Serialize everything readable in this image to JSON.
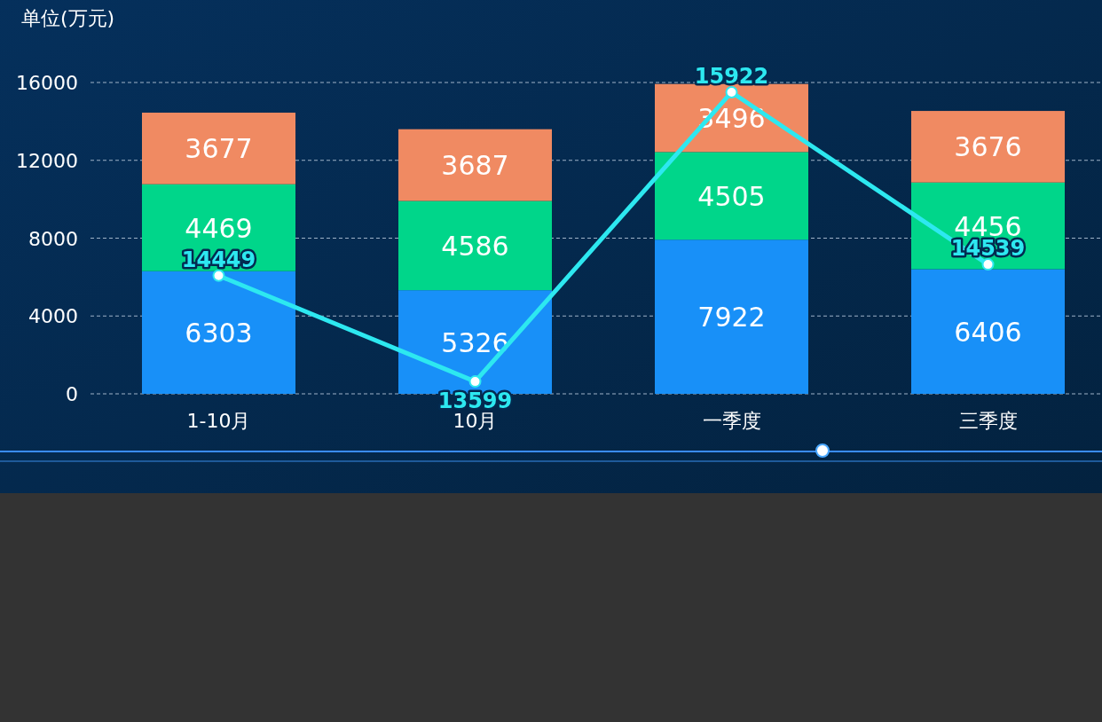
{
  "chart_data": {
    "type": "bar",
    "ylabel": "单位(万元)",
    "stacked": true,
    "grid": "y",
    "data_labels": true,
    "categories": [
      "1-10月",
      "10月",
      "一季度",
      "三季度"
    ],
    "ylim": [
      0,
      16000
    ],
    "yticks": [
      0,
      4000,
      8000,
      12000,
      16000
    ],
    "y2lim": [
      13500,
      16000
    ],
    "tick_labels": "xy",
    "series": [
      {
        "color": "#1890f8",
        "values": [
          6303,
          5326,
          7922,
          6406
        ]
      },
      {
        "color": "#00d68a",
        "values": [
          4469,
          4586,
          4505,
          4456
        ]
      },
      {
        "color": "#f08a62",
        "values": [
          3677,
          3687,
          3496,
          3676
        ]
      },
      {
        "type": "line",
        "axis": "y2",
        "color": "#2de8f0",
        "marker": "circle",
        "values": [
          14449,
          13599,
          15922,
          14539
        ]
      }
    ]
  }
}
